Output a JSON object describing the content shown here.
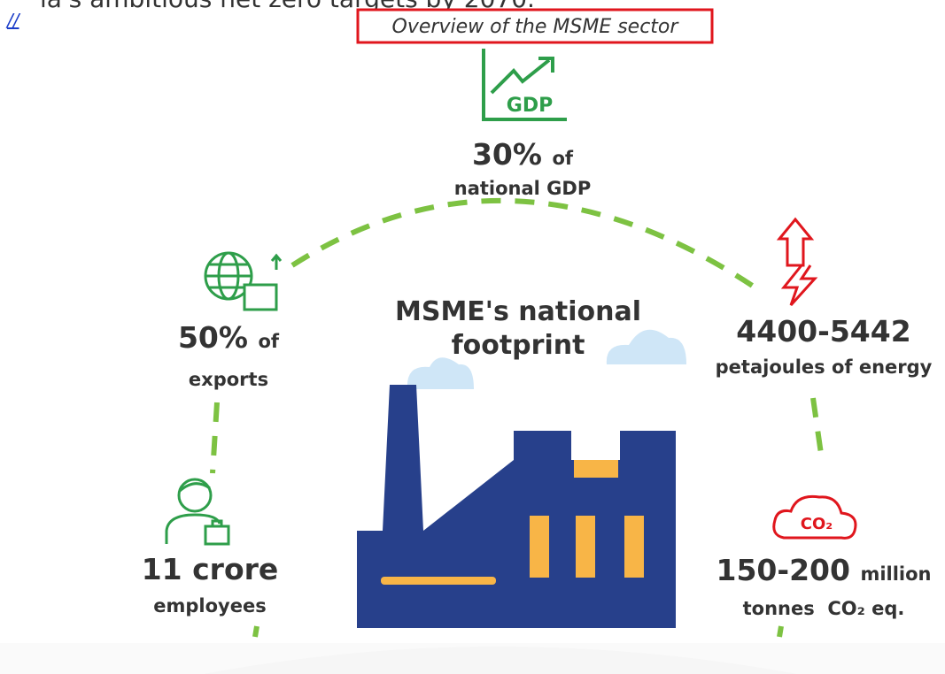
{
  "page": {
    "clipped_heading": "ia's ambitious net zero targets by 2070.",
    "link": "//",
    "caption": "Overview of the MSME sector"
  },
  "infographic": {
    "title_lines": [
      "MSME's national",
      "footprint"
    ],
    "stats": [
      {
        "icon_label": "GDP",
        "value": "30%",
        "unit": "of",
        "label": "national GDP"
      },
      {
        "value": "50%",
        "unit": "of",
        "label": "exports"
      },
      {
        "value": "4400-5442",
        "label": "petajoules of energy"
      },
      {
        "value": "11 crore",
        "label": "employees"
      },
      {
        "icon_label": "CO₂",
        "value": "150-200",
        "unit": "million",
        "label": "tonnes  CO₂ eq."
      }
    ]
  }
}
